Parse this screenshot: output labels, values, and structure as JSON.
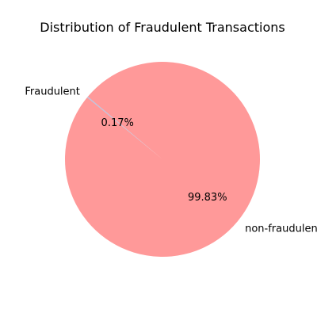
{
  "chart_data": {
    "type": "pie",
    "title": "Distribution of Fraudulent Transactions",
    "slices": [
      {
        "label": "Fraudulent",
        "value": 0.17,
        "pct_label": "0.17%",
        "color": "#aec7e8"
      },
      {
        "label": "non-fraudulent",
        "value": 99.83,
        "pct_label": "99.83%",
        "color": "#ff9999"
      }
    ],
    "start_angle": 140,
    "legend": "none"
  }
}
